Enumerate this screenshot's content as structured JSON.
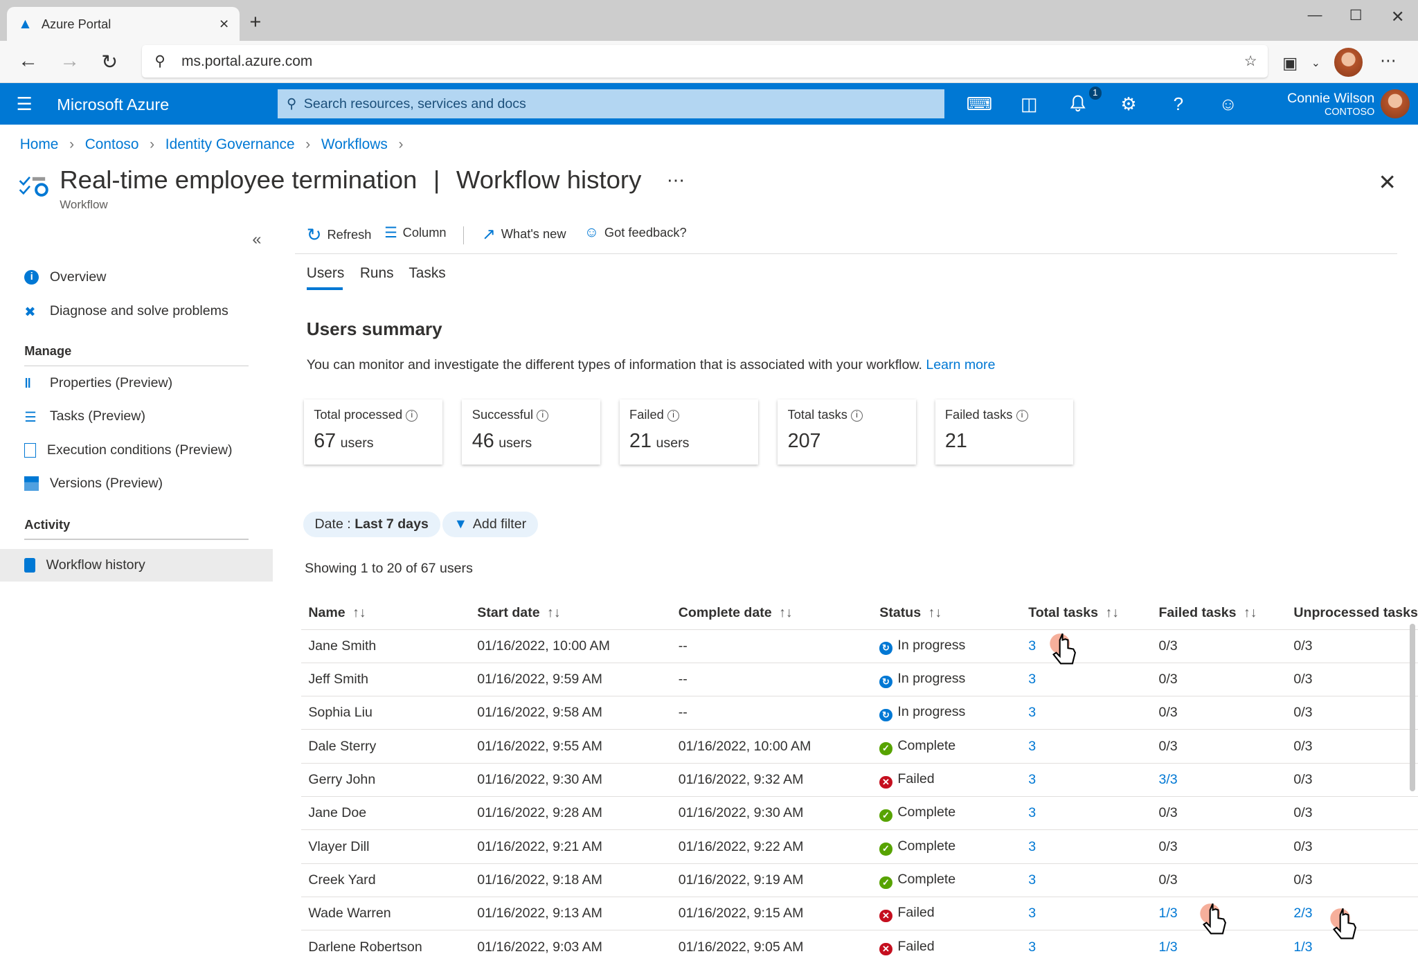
{
  "browser": {
    "tab_title": "Azure Portal",
    "url": "ms.portal.azure.com"
  },
  "header": {
    "brand": "Microsoft Azure",
    "search_placeholder": "Search resources, services and docs",
    "notification_count": "1",
    "user_name": "Connie Wilson",
    "user_org": "CONTOSO"
  },
  "breadcrumb": [
    "Home",
    "Contoso",
    "Identity Governance",
    "Workflows"
  ],
  "page": {
    "title": "Real-time employee termination",
    "section": "Workflow history",
    "subtitle": "Workflow"
  },
  "sidebar": {
    "items": [
      {
        "label": "Overview",
        "icon": "info-icon"
      },
      {
        "label": "Diagnose and solve problems",
        "icon": "tools-icon"
      }
    ],
    "manage_header": "Manage",
    "manage": [
      {
        "label": "Properties (Preview)",
        "icon": "properties-icon"
      },
      {
        "label": "Tasks (Preview)",
        "icon": "tasks-icon"
      },
      {
        "label": "Execution conditions (Preview)",
        "icon": "document-icon"
      },
      {
        "label": "Versions (Preview)",
        "icon": "versions-icon"
      }
    ],
    "activity_header": "Activity",
    "activity": [
      {
        "label": "Workflow history",
        "icon": "book-icon",
        "selected": true
      }
    ]
  },
  "toolbar": {
    "refresh": "Refresh",
    "column": "Column",
    "whats_new": "What's new",
    "feedback": "Got feedback?"
  },
  "tabs": [
    {
      "label": "Users",
      "active": true
    },
    {
      "label": "Runs"
    },
    {
      "label": "Tasks"
    }
  ],
  "summary": {
    "title": "Users summary",
    "description": "You can monitor and investigate the different types of information that is associated with your workflow.",
    "learn_more": "Learn more",
    "cards": [
      {
        "label": "Total processed",
        "value": "67",
        "unit": "users"
      },
      {
        "label": "Successful",
        "value": "46",
        "unit": "users"
      },
      {
        "label": "Failed",
        "value": "21",
        "unit": "users"
      },
      {
        "label": "Total tasks",
        "value": "207",
        "unit": ""
      },
      {
        "label": "Failed tasks",
        "value": "21",
        "unit": ""
      }
    ]
  },
  "filters": {
    "date_label": "Date : ",
    "date_value": "Last 7 days",
    "add_filter": "Add filter"
  },
  "showing": "Showing 1 to 20 of 67 users",
  "table": {
    "columns": [
      "Name",
      "Start date",
      "Complete date",
      "Status",
      "Total tasks",
      "Failed tasks",
      "Unprocessed tasks"
    ],
    "rows": [
      [
        "Jane Smith",
        "01/16/2022, 10:00 AM",
        "--",
        "In progress",
        "3",
        "0/3",
        "0/3"
      ],
      [
        "Jeff Smith",
        "01/16/2022, 9:59 AM",
        "--",
        "In progress",
        "3",
        "0/3",
        "0/3"
      ],
      [
        "Sophia Liu",
        "01/16/2022, 9:58 AM",
        "--",
        "In progress",
        "3",
        "0/3",
        "0/3"
      ],
      [
        "Dale Sterry",
        "01/16/2022, 9:55 AM",
        "01/16/2022, 10:00 AM",
        "Complete",
        "3",
        "0/3",
        "0/3"
      ],
      [
        "Gerry John",
        "01/16/2022, 9:30 AM",
        "01/16/2022, 9:32 AM",
        "Failed",
        "3",
        "3/3",
        "0/3"
      ],
      [
        "Jane Doe",
        "01/16/2022, 9:28 AM",
        "01/16/2022, 9:30 AM",
        "Complete",
        "3",
        "0/3",
        "0/3"
      ],
      [
        "Vlayer Dill",
        "01/16/2022, 9:21 AM",
        "01/16/2022, 9:22 AM",
        "Complete",
        "3",
        "0/3",
        "0/3"
      ],
      [
        "Creek Yard",
        "01/16/2022, 9:18 AM",
        "01/16/2022, 9:19 AM",
        "Complete",
        "3",
        "0/3",
        "0/3"
      ],
      [
        "Wade Warren",
        "01/16/2022, 9:13 AM",
        "01/16/2022, 9:15 AM",
        "Failed",
        "3",
        "1/3",
        "2/3"
      ],
      [
        "Darlene Robertson",
        "01/16/2022, 9:03 AM",
        "01/16/2022, 9:05 AM",
        "Failed",
        "3",
        "1/3",
        "1/3"
      ]
    ]
  },
  "colors": {
    "accent": "#0078d4",
    "in_progress": "#0078d4",
    "complete": "#57a300",
    "failed": "#c50f1f",
    "cursor_highlight": "#f4a18a"
  }
}
